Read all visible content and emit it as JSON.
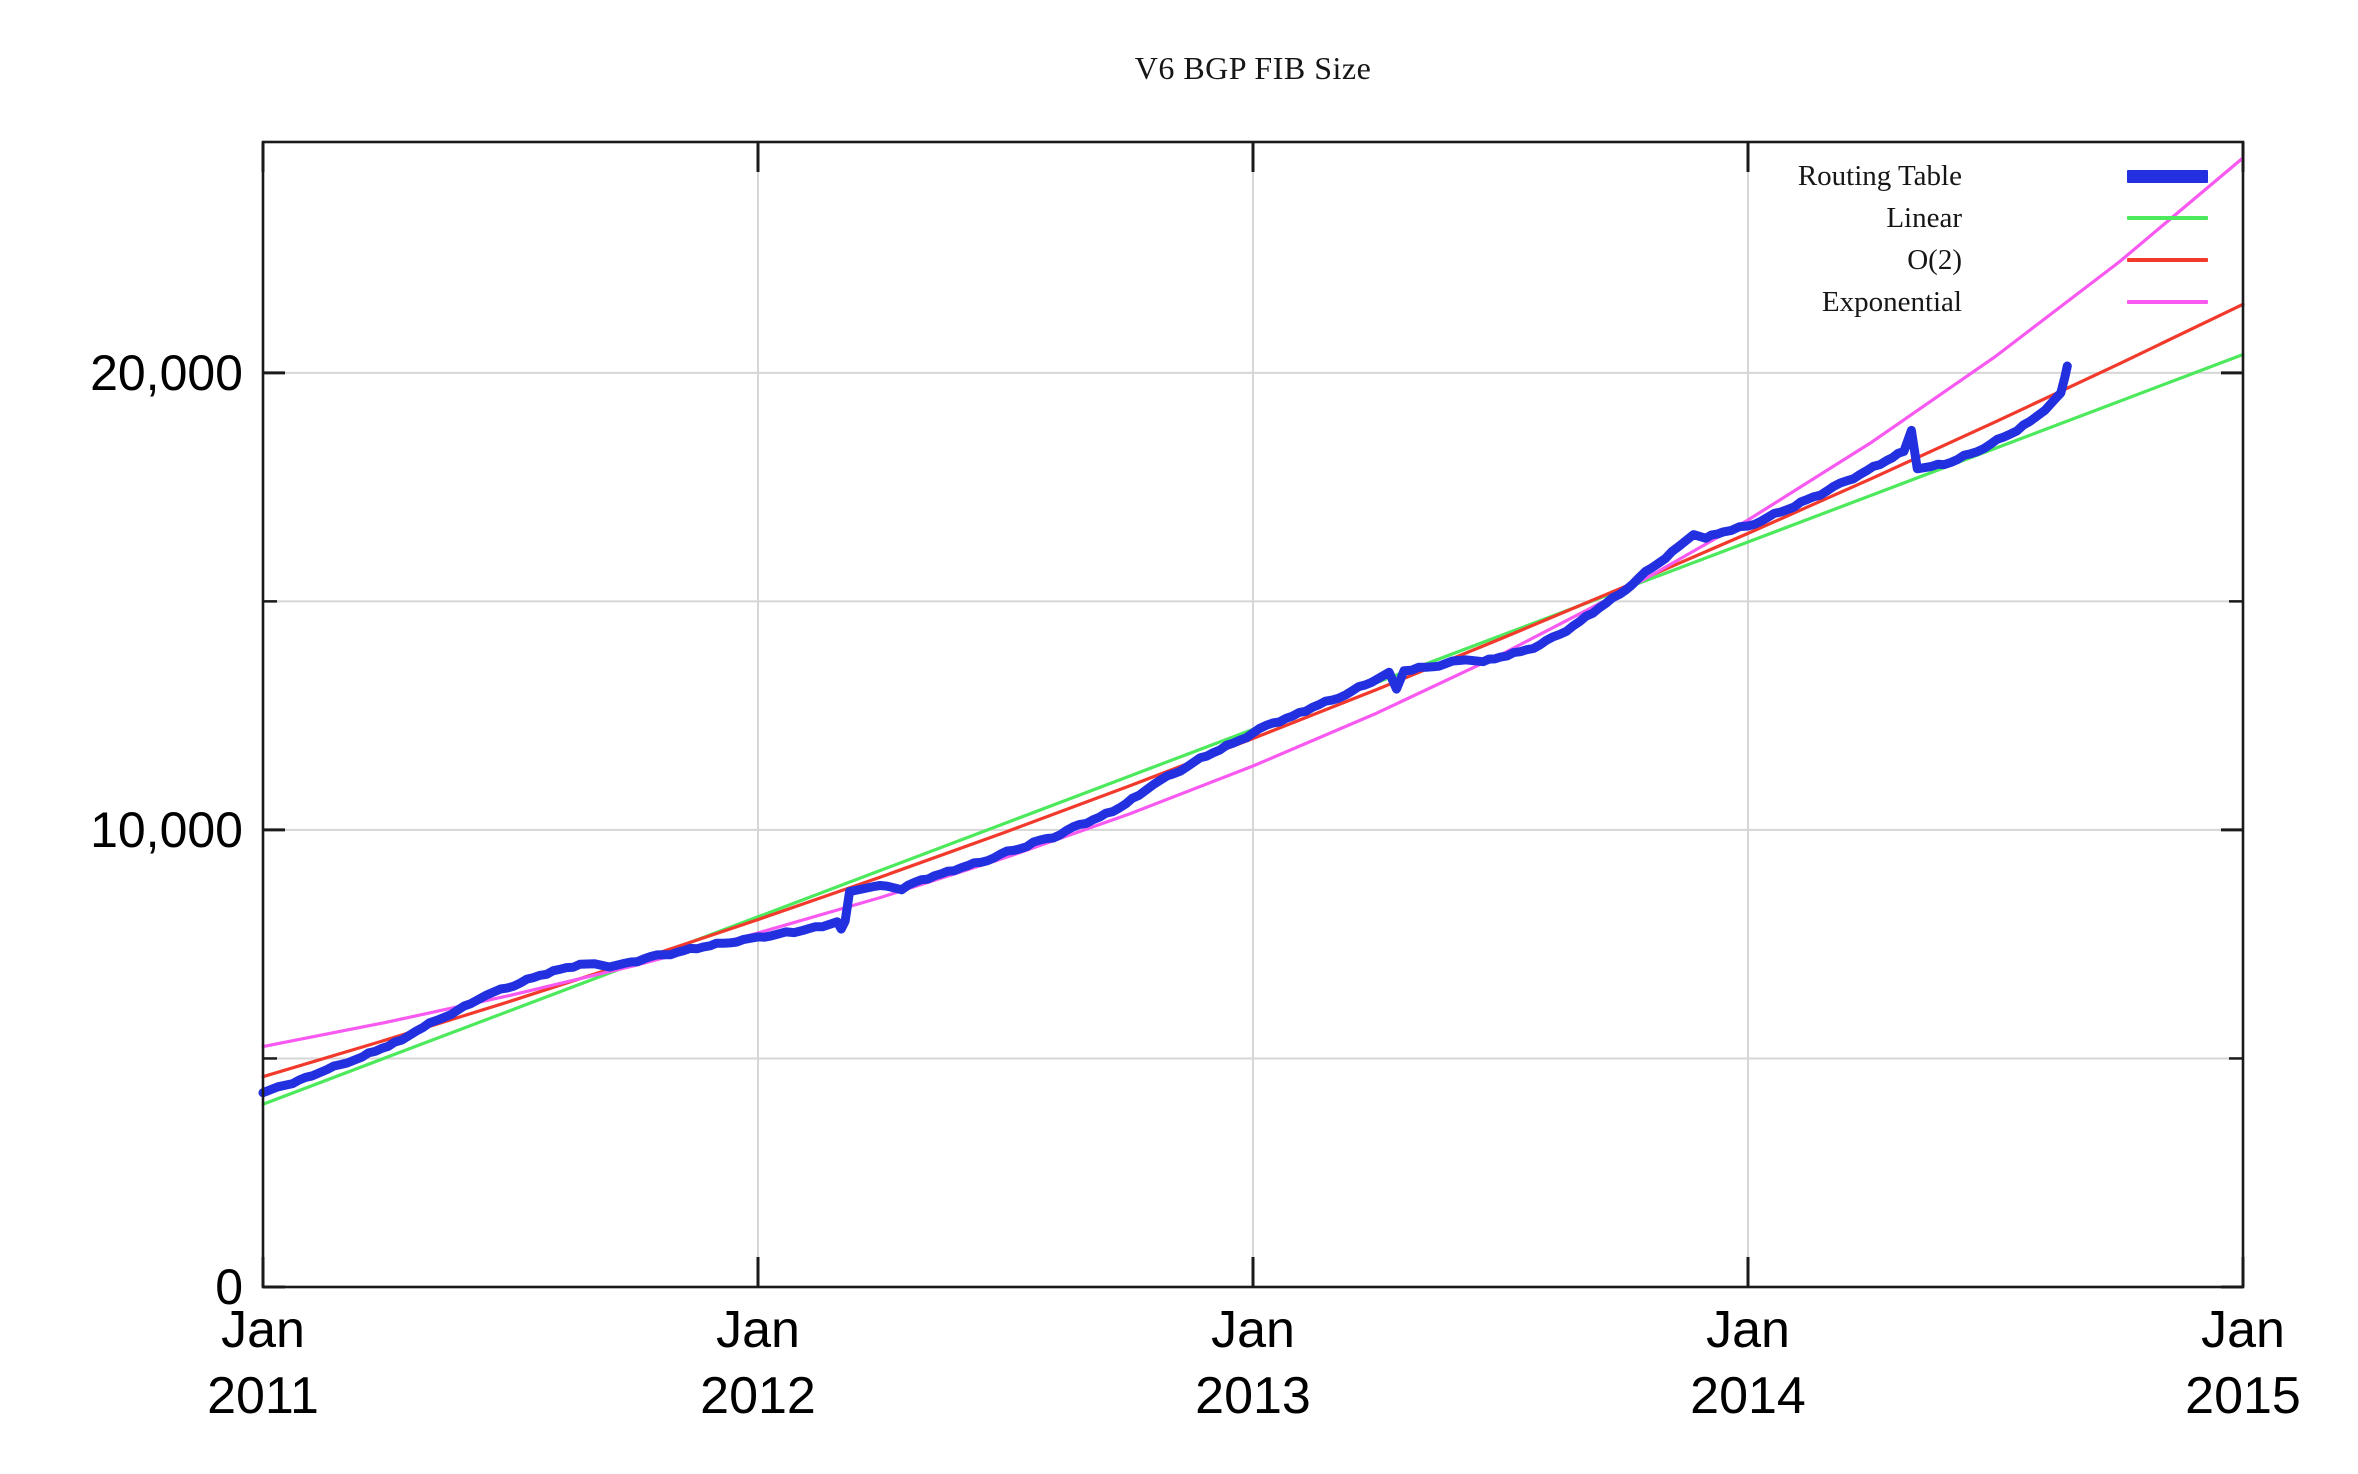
{
  "title": "V6 BGP FIB Size",
  "colors": {
    "background": "#ffffff",
    "grid": "#d6d6d6",
    "axis": "#1a1a1a",
    "routing_table": "#2330e0",
    "linear": "#4ce95c",
    "o2": "#f23a2c",
    "exponential": "#f859f0"
  },
  "chart_data": {
    "type": "line",
    "title": "V6 BGP FIB Size",
    "grid": "on",
    "x_axis": {
      "unit": "year",
      "range": [
        0,
        4
      ],
      "ticks": [
        {
          "month": "Jan",
          "year": "2011",
          "t": 0
        },
        {
          "month": "Jan",
          "year": "2012",
          "t": 1
        },
        {
          "month": "Jan",
          "year": "2013",
          "t": 2
        },
        {
          "month": "Jan",
          "year": "2014",
          "t": 3
        },
        {
          "month": "Jan",
          "year": "2015",
          "t": 4
        }
      ]
    },
    "y_axis": {
      "range": [
        0,
        25050
      ],
      "major_ticks": [
        {
          "label": "0",
          "v": 0
        },
        {
          "label": "10,000",
          "v": 10000
        },
        {
          "label": "20,000",
          "v": 20000
        }
      ],
      "minor_tick_values": [
        5000,
        15000
      ]
    },
    "legend": {
      "position": "top-right",
      "entries": [
        "Routing Table",
        "Linear",
        "O(2)",
        "Exponential"
      ]
    },
    "series": [
      {
        "name": "Routing Table",
        "color_key": "routing_table",
        "width": 9,
        "texture": true,
        "points": [
          [
            0.0,
            4250
          ],
          [
            0.03,
            4380
          ],
          [
            0.06,
            4450
          ],
          [
            0.1,
            4620
          ],
          [
            0.13,
            4760
          ],
          [
            0.17,
            4900
          ],
          [
            0.2,
            5030
          ],
          [
            0.24,
            5220
          ],
          [
            0.28,
            5400
          ],
          [
            0.31,
            5600
          ],
          [
            0.35,
            5830
          ],
          [
            0.38,
            5960
          ],
          [
            0.42,
            6200
          ],
          [
            0.45,
            6380
          ],
          [
            0.48,
            6520
          ],
          [
            0.52,
            6650
          ],
          [
            0.56,
            6820
          ],
          [
            0.6,
            6950
          ],
          [
            0.64,
            7060
          ],
          [
            0.67,
            7070
          ],
          [
            0.7,
            7000
          ],
          [
            0.73,
            7080
          ],
          [
            0.77,
            7180
          ],
          [
            0.81,
            7270
          ],
          [
            0.85,
            7360
          ],
          [
            0.89,
            7440
          ],
          [
            0.93,
            7520
          ],
          [
            0.97,
            7600
          ],
          [
            1.0,
            7660
          ],
          [
            1.04,
            7720
          ],
          [
            1.09,
            7800
          ],
          [
            1.13,
            7880
          ],
          [
            1.16,
            7990
          ],
          [
            1.168,
            7830
          ],
          [
            1.176,
            8000
          ],
          [
            1.185,
            8650
          ],
          [
            1.22,
            8730
          ],
          [
            1.26,
            8770
          ],
          [
            1.29,
            8690
          ],
          [
            1.33,
            8910
          ],
          [
            1.37,
            9040
          ],
          [
            1.41,
            9170
          ],
          [
            1.45,
            9290
          ],
          [
            1.49,
            9470
          ],
          [
            1.53,
            9590
          ],
          [
            1.57,
            9780
          ],
          [
            1.61,
            9890
          ],
          [
            1.65,
            10120
          ],
          [
            1.69,
            10280
          ],
          [
            1.73,
            10480
          ],
          [
            1.77,
            10760
          ],
          [
            1.8,
            11000
          ],
          [
            1.84,
            11230
          ],
          [
            1.88,
            11480
          ],
          [
            1.92,
            11690
          ],
          [
            1.96,
            11900
          ],
          [
            2.0,
            12120
          ],
          [
            2.04,
            12340
          ],
          [
            2.08,
            12490
          ],
          [
            2.12,
            12680
          ],
          [
            2.16,
            12840
          ],
          [
            2.2,
            13040
          ],
          [
            2.24,
            13230
          ],
          [
            2.275,
            13450
          ],
          [
            2.29,
            13080
          ],
          [
            2.305,
            13480
          ],
          [
            2.35,
            13560
          ],
          [
            2.39,
            13640
          ],
          [
            2.43,
            13720
          ],
          [
            2.465,
            13680
          ],
          [
            2.5,
            13780
          ],
          [
            2.54,
            13900
          ],
          [
            2.58,
            14050
          ],
          [
            2.62,
            14280
          ],
          [
            2.66,
            14560
          ],
          [
            2.7,
            14860
          ],
          [
            2.74,
            15150
          ],
          [
            2.78,
            15520
          ],
          [
            2.82,
            15840
          ],
          [
            2.86,
            16200
          ],
          [
            2.89,
            16460
          ],
          [
            2.915,
            16380
          ],
          [
            2.95,
            16520
          ],
          [
            3.0,
            16650
          ],
          [
            3.04,
            16840
          ],
          [
            3.08,
            17010
          ],
          [
            3.12,
            17230
          ],
          [
            3.16,
            17420
          ],
          [
            3.2,
            17640
          ],
          [
            3.24,
            17860
          ],
          [
            3.28,
            18080
          ],
          [
            3.315,
            18280
          ],
          [
            3.33,
            18740
          ],
          [
            3.342,
            17900
          ],
          [
            3.37,
            17950
          ],
          [
            3.41,
            18040
          ],
          [
            3.45,
            18230
          ],
          [
            3.49,
            18440
          ],
          [
            3.53,
            18660
          ],
          [
            3.57,
            18940
          ],
          [
            3.6,
            19180
          ],
          [
            3.62,
            19420
          ],
          [
            3.632,
            19560
          ],
          [
            3.64,
            19900
          ],
          [
            3.645,
            20150
          ]
        ]
      },
      {
        "name": "Linear",
        "color_key": "linear",
        "width": 3.2,
        "texture": false,
        "points": [
          [
            0,
            4000
          ],
          [
            0.25,
            5025
          ],
          [
            0.5,
            6050
          ],
          [
            0.75,
            7075
          ],
          [
            1,
            8100
          ],
          [
            1.25,
            9125
          ],
          [
            1.5,
            10150
          ],
          [
            1.75,
            11175
          ],
          [
            2,
            12200
          ],
          [
            2.25,
            13225
          ],
          [
            2.5,
            14250
          ],
          [
            2.75,
            15275
          ],
          [
            3,
            16300
          ],
          [
            3.25,
            17325
          ],
          [
            3.5,
            18350
          ],
          [
            3.75,
            19375
          ],
          [
            4,
            20400
          ]
        ]
      },
      {
        "name": "O(2)",
        "color_key": "o2",
        "width": 3.2,
        "texture": false,
        "points": [
          [
            0,
            4600
          ],
          [
            0.25,
            5410
          ],
          [
            0.5,
            6253
          ],
          [
            0.75,
            7129
          ],
          [
            1,
            8038
          ],
          [
            1.25,
            8979
          ],
          [
            1.5,
            9953
          ],
          [
            1.75,
            10960
          ],
          [
            2,
            12000
          ],
          [
            2.25,
            13073
          ],
          [
            2.5,
            14178
          ],
          [
            2.75,
            15316
          ],
          [
            3,
            16488
          ],
          [
            3.25,
            17691
          ],
          [
            3.5,
            18928
          ],
          [
            3.75,
            20198
          ],
          [
            4,
            21500
          ]
        ]
      },
      {
        "name": "Exponential",
        "color_key": "exponential",
        "width": 3.2,
        "texture": false,
        "points": [
          [
            0,
            5260
          ],
          [
            0.25,
            5794
          ],
          [
            0.5,
            6382
          ],
          [
            0.75,
            7030
          ],
          [
            1,
            7744
          ],
          [
            1.25,
            8530
          ],
          [
            1.5,
            9395
          ],
          [
            1.75,
            10349
          ],
          [
            2,
            11399
          ],
          [
            2.25,
            12556
          ],
          [
            2.5,
            13831
          ],
          [
            2.75,
            15234
          ],
          [
            3,
            16780
          ],
          [
            3.25,
            18484
          ],
          [
            3.5,
            20360
          ],
          [
            3.75,
            22426
          ],
          [
            4,
            24702
          ]
        ]
      }
    ]
  }
}
